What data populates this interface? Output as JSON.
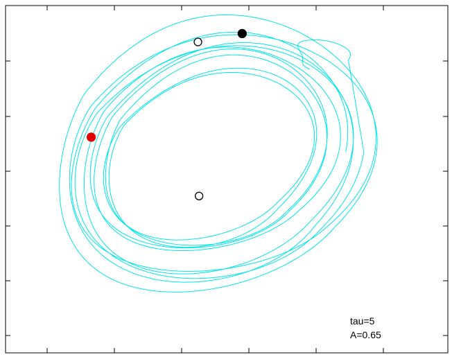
{
  "chart_data": {
    "type": "scatter",
    "title": "",
    "xlabel": "",
    "ylabel": "",
    "grid": false,
    "legend": "none",
    "annotations": [
      "tau=5",
      "A=0.65"
    ],
    "colors": {
      "trajectory": "#00e6e6",
      "current_point": "#000000",
      "highlight_point": "#e00000",
      "fixed_point": "#000000",
      "frame": "#000000",
      "background": "#ffffff"
    },
    "markers": [
      {
        "kind": "current-state",
        "style": "filled",
        "color": "#000000",
        "x": 0.78,
        "y": 2.9
      },
      {
        "kind": "highlight-state",
        "style": "filled",
        "color": "#e00000",
        "x": -1.95,
        "y": 1.05
      },
      {
        "kind": "fixed-point",
        "style": "open",
        "color": "#000000",
        "x": 0.0,
        "y": 0.0
      },
      {
        "kind": "fixed-point",
        "style": "open",
        "color": "#000000",
        "x": -0.02,
        "y": 2.75
      }
    ],
    "trajectory": {
      "center": [
        -0.25,
        0.55
      ],
      "start_radius": 1.45,
      "end_radius": 2.4,
      "turns": 10,
      "tail_peak": [
        2.6,
        2.7
      ]
    },
    "xlim": [
      -3.5,
      4.5
    ],
    "ylim": [
      -2.8,
      3.4
    ]
  }
}
